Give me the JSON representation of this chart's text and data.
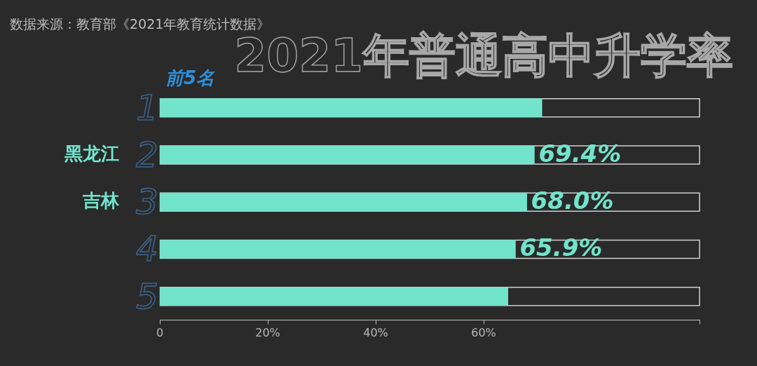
{
  "chart_data": {
    "type": "bar",
    "orientation": "horizontal",
    "title": "2021年普通高中升学率",
    "subtitle": "前5名",
    "categories": [
      null,
      "黑龙江",
      "吉林",
      null,
      null
    ],
    "values": [
      70.8,
      69.4,
      68.0,
      65.9,
      64.5
    ],
    "color": "#72e4cb",
    "value_labels": [
      null,
      "69.4%",
      "68.0%",
      "65.9%",
      null
    ],
    "xlim": [
      0,
      100
    ],
    "xticks": [
      0,
      {
        "value": 20,
        "label": "20%"
      },
      {
        "value": 40,
        "label": "40%"
      },
      {
        "value": 60,
        "label": "60%"
      },
      {
        "value": 100,
        "label": null
      }
    ],
    "annotations": [
      "1",
      "2",
      "3",
      "4",
      "5",
      "数据来源：教育部《2021年教育统计数据》"
    ]
  }
}
